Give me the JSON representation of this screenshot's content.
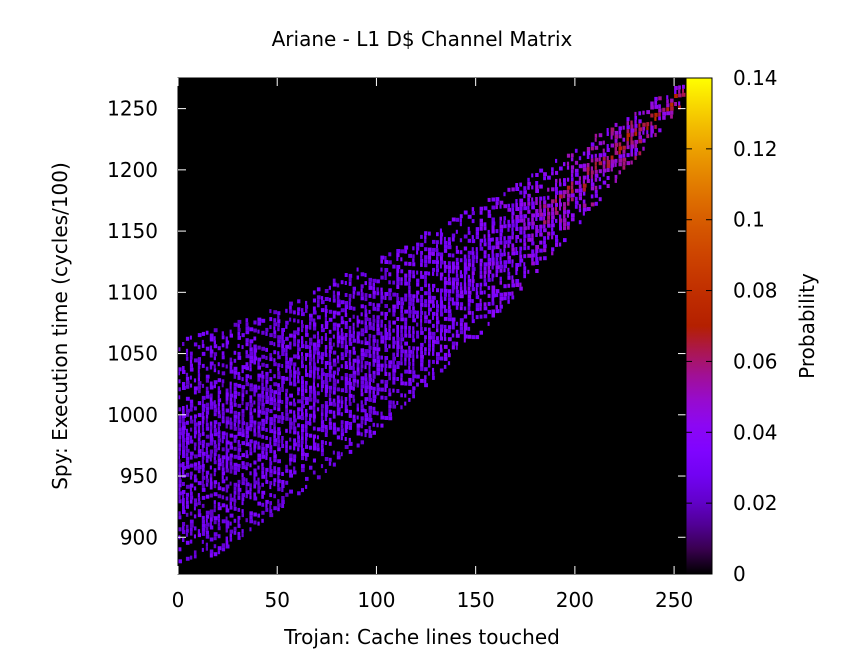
{
  "chart_data": {
    "type": "heatmap",
    "title": "Ariane - L1 D$ Channel Matrix",
    "xlabel": "Trojan: Cache lines touched",
    "ylabel": "Spy: Execution time (cycles/100)",
    "colorbar_label": "Probability",
    "xlim": [
      0,
      256
    ],
    "ylim": [
      870,
      1275
    ],
    "x_ticks": [
      "0",
      "50",
      "100",
      "150",
      "200",
      "250"
    ],
    "x_tick_values": [
      0,
      50,
      100,
      150,
      200,
      250
    ],
    "y_ticks": [
      "900",
      "950",
      "1000",
      "1050",
      "1100",
      "1150",
      "1200",
      "1250"
    ],
    "y_tick_values": [
      900,
      950,
      1000,
      1050,
      1100,
      1150,
      1200,
      1250
    ],
    "color_ticks": [
      "0",
      "0.02",
      "0.04",
      "0.06",
      "0.08",
      "0.1",
      "0.12",
      "0.14"
    ],
    "color_tick_values": [
      0,
      0.02,
      0.04,
      0.06,
      0.08,
      0.1,
      0.12,
      0.14
    ],
    "color_range": [
      0,
      0.14
    ],
    "colormap": "gnuplot",
    "background_color": "#000000",
    "band": {
      "x": [
        0,
        20,
        50,
        100,
        150,
        200,
        256
      ],
      "y_low": [
        875,
        885,
        920,
        985,
        1060,
        1150,
        1255
      ],
      "y_high": [
        1060,
        1068,
        1085,
        1125,
        1170,
        1215,
        1272
      ],
      "peak_probability": [
        0.035,
        0.035,
        0.035,
        0.037,
        0.042,
        0.055,
        0.07
      ]
    }
  }
}
